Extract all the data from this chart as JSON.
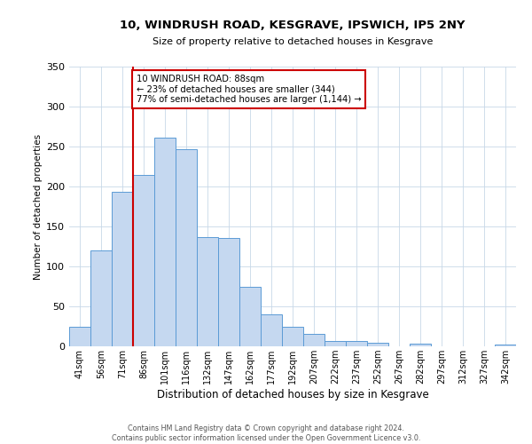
{
  "title": "10, WINDRUSH ROAD, KESGRAVE, IPSWICH, IP5 2NY",
  "subtitle": "Size of property relative to detached houses in Kesgrave",
  "xlabel": "Distribution of detached houses by size in Kesgrave",
  "ylabel": "Number of detached properties",
  "bin_labels": [
    "41sqm",
    "56sqm",
    "71sqm",
    "86sqm",
    "101sqm",
    "116sqm",
    "132sqm",
    "147sqm",
    "162sqm",
    "177sqm",
    "192sqm",
    "207sqm",
    "222sqm",
    "237sqm",
    "252sqm",
    "267sqm",
    "282sqm",
    "297sqm",
    "312sqm",
    "327sqm",
    "342sqm"
  ],
  "bar_heights": [
    25,
    120,
    193,
    214,
    261,
    247,
    137,
    136,
    75,
    40,
    25,
    16,
    7,
    7,
    5,
    0,
    3,
    0,
    0,
    0,
    2
  ],
  "bar_color": "#c5d8f0",
  "bar_edge_color": "#5b9bd5",
  "property_bin_index": 3,
  "annotation_title": "10 WINDRUSH ROAD: 88sqm",
  "annotation_line1": "← 23% of detached houses are smaller (344)",
  "annotation_line2": "77% of semi-detached houses are larger (1,144) →",
  "vline_color": "#cc0000",
  "annotation_box_color": "#cc0000",
  "ylim": [
    0,
    350
  ],
  "yticks": [
    0,
    50,
    100,
    150,
    200,
    250,
    300,
    350
  ],
  "footer1": "Contains HM Land Registry data © Crown copyright and database right 2024.",
  "footer2": "Contains public sector information licensed under the Open Government Licence v3.0.",
  "bg_color": "#ffffff",
  "grid_color": "#c8d8e8"
}
